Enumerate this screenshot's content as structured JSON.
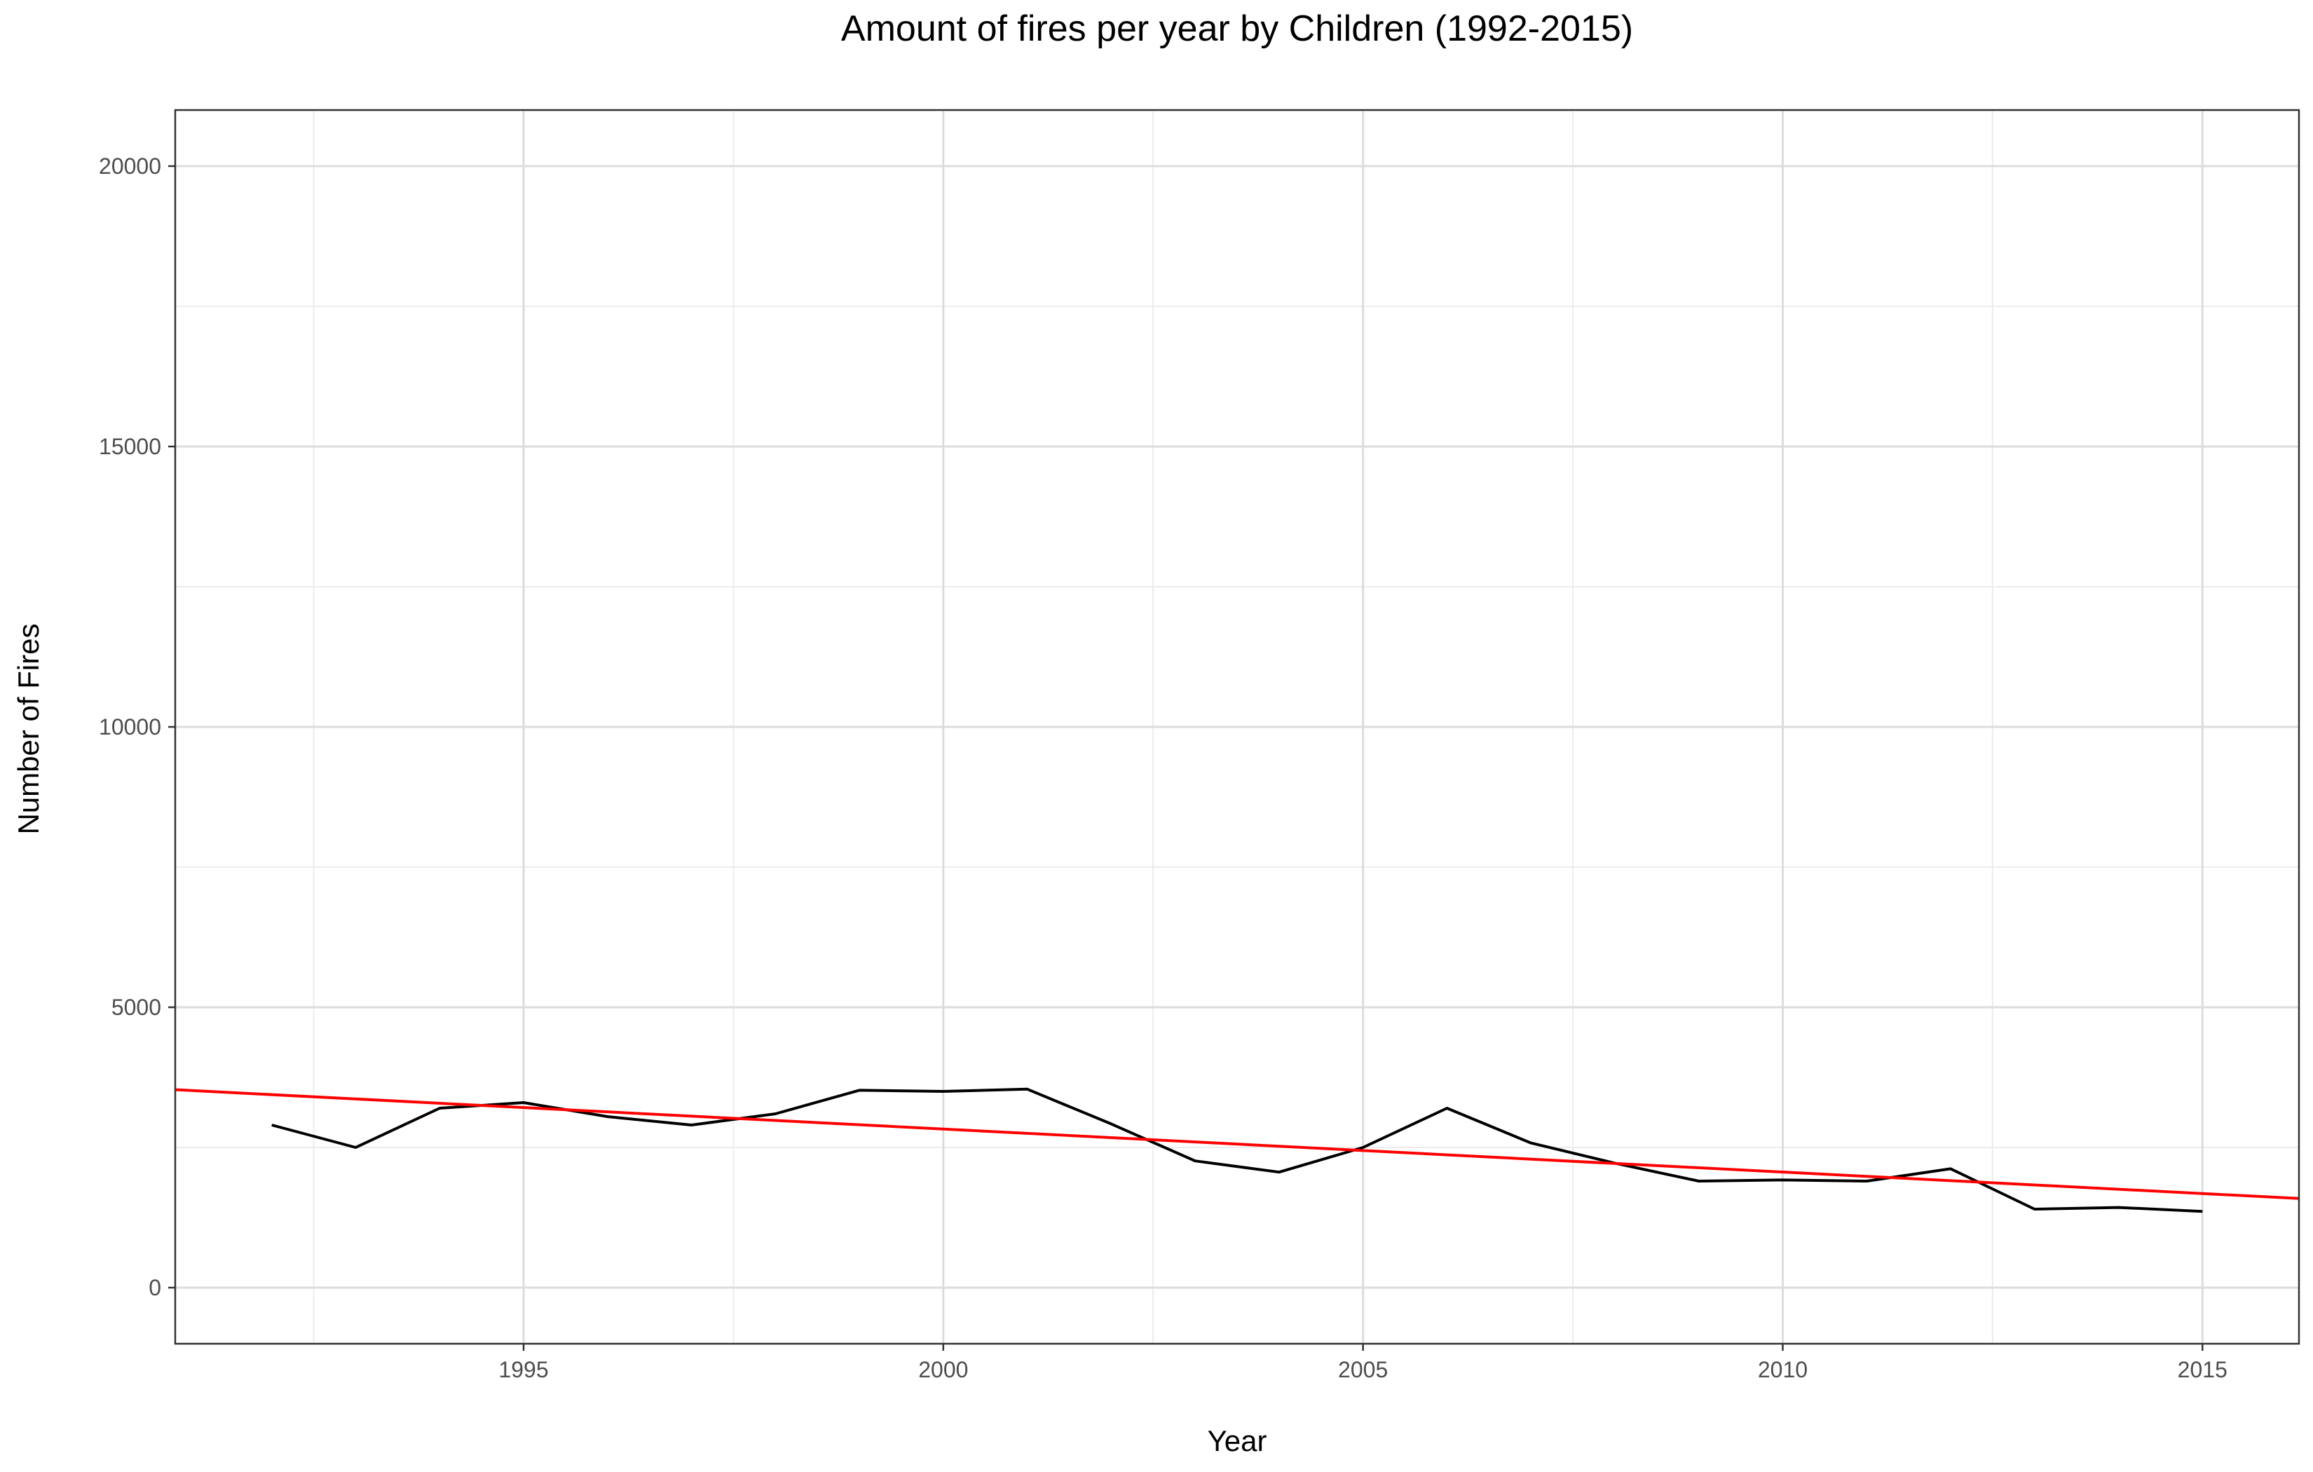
{
  "chart_data": {
    "type": "line",
    "title": "Amount of fires per year by Children (1992-2015)",
    "xlabel": "Year",
    "ylabel": "Number of Fires",
    "xlim": [
      1990.85,
      2016.15
    ],
    "ylim": [
      -1000,
      21000
    ],
    "x_ticks": [
      1995,
      2000,
      2005,
      2010,
      2015
    ],
    "y_ticks": [
      0,
      5000,
      10000,
      15000,
      20000
    ],
    "grid": true,
    "legend": "none",
    "series": [
      {
        "color": "#000000",
        "x": [
          1992,
          1993,
          1994,
          1995,
          1996,
          1997,
          1998,
          1999,
          2000,
          2001,
          2002,
          2003,
          2004,
          2005,
          2006,
          2007,
          2008,
          2009,
          2010,
          2011,
          2012,
          2013,
          2014,
          2015
        ],
        "y": [
          2900,
          2500,
          3200,
          3300,
          3050,
          2900,
          3100,
          3520,
          3500,
          3540,
          2920,
          2260,
          2060,
          2500,
          3200,
          2580,
          2220,
          1900,
          1920,
          1900,
          2120,
          1400,
          1430,
          1360
        ]
      }
    ],
    "trend_line": {
      "color": "#ff0000",
      "x": [
        1990.85,
        2016.15
      ],
      "y": [
        3530,
        1590
      ]
    }
  }
}
